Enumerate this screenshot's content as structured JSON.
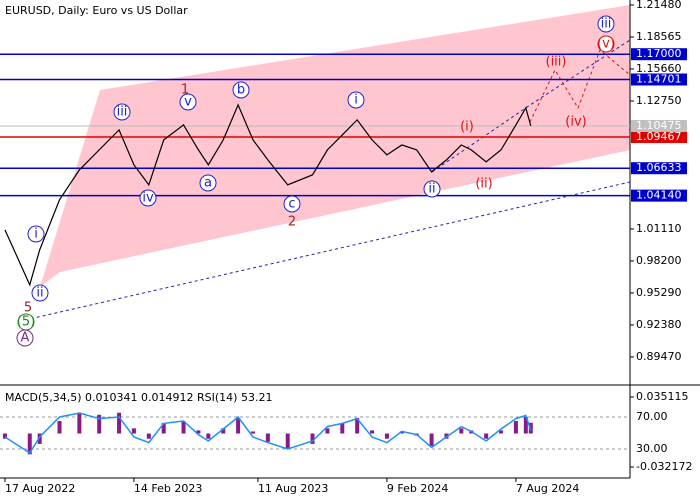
{
  "chart_data": [
    {
      "type": "line",
      "title": "EURUSD, Daily:  Euro vs US Dollar",
      "x": [
        0,
        5,
        7,
        11,
        15,
        19,
        23,
        26,
        29,
        32,
        36,
        39,
        41,
        44,
        47,
        50,
        53,
        57,
        62,
        65,
        68,
        71,
        74,
        77,
        80,
        83,
        86,
        89,
        92,
        94,
        97,
        100,
        103,
        105,
        106
      ],
      "series": [
        {
          "name": "EURUSD",
          "color": "#000000",
          "values": [
            1.0103,
            0.9603,
            0.9921,
            1.0376,
            1.0648,
            1.083,
            1.1012,
            1.0694,
            1.0512,
            1.0921,
            1.1057,
            1.083,
            1.0694,
            1.0921,
            1.1239,
            1.0921,
            1.0739,
            1.0512,
            1.0603,
            1.083,
            1.0966,
            1.1103,
            1.0921,
            1.0785,
            1.0875,
            1.083,
            1.063,
            1.0739,
            1.0875,
            1.083,
            1.0721,
            1.083,
            1.1057,
            1.1212,
            1.1048
          ]
        }
      ],
      "xlim": [
        -1,
        126
      ],
      "xticks": [
        {
          "value": 0,
          "label": "17 Aug 2022"
        },
        {
          "value": 26,
          "label": "14 Feb 2023"
        },
        {
          "value": 51,
          "label": "11 Aug 2023"
        },
        {
          "value": 77,
          "label": "9 Feb 2024"
        },
        {
          "value": 103,
          "label": "7 Aug 2024"
        }
      ],
      "ylim": [
        0.8692,
        1.2193
      ],
      "yticks": [
        {
          "value": 1.2148,
          "label": "1.21480"
        },
        {
          "value": 1.18565,
          "label": "1.18565"
        },
        {
          "value": 1.1566,
          "label": "1.15660"
        },
        {
          "value": 1.1275,
          "label": "1.12750"
        },
        {
          "value": 1.0111,
          "label": "1.01110"
        },
        {
          "value": 0.982,
          "label": "0.98200"
        },
        {
          "value": 0.9529,
          "label": "0.95290"
        },
        {
          "value": 0.9238,
          "label": "0.92380"
        },
        {
          "value": 0.8947,
          "label": "0.89470"
        }
      ],
      "last_price": {
        "value": 1.10475,
        "label": "1.10475"
      },
      "levels": [
        {
          "value": 1.17,
          "label": "1.17000",
          "color": "#0000cc"
        },
        {
          "value": 1.14701,
          "label": "1.14701",
          "color": "#0000cc"
        },
        {
          "value": 1.09467,
          "label": "1.09467",
          "color": "#e00000"
        },
        {
          "value": 1.06633,
          "label": "1.06633",
          "color": "#0000cc"
        },
        {
          "value": 1.0414,
          "label": "1.04140",
          "color": "#0000cc"
        }
      ],
      "annotations": [
        {
          "text": "iii",
          "color": "#2222cc",
          "circled": true
        },
        {
          "text": "iv",
          "color": "#2222cc",
          "circled": true
        },
        {
          "text": "v",
          "color": "#2222cc",
          "circled": true
        },
        {
          "text": "a",
          "color": "#2222cc",
          "circled": true
        },
        {
          "text": "b",
          "color": "#2222cc",
          "circled": true
        },
        {
          "text": "c",
          "color": "#2222cc",
          "circled": true
        },
        {
          "text": "i",
          "color": "#2222cc",
          "circled": true
        },
        {
          "text": "ii",
          "color": "#2222cc",
          "circled": true
        },
        {
          "text": "(i)",
          "color": "#dd1111",
          "circled": false
        },
        {
          "text": "(ii)",
          "color": "#dd1111",
          "circled": false
        },
        {
          "text": "(iii)",
          "color": "#dd1111",
          "circled": false
        },
        {
          "text": "(iv)",
          "color": "#dd1111",
          "circled": false
        },
        {
          "text": "(v)",
          "color": "#dd1111",
          "circled": true
        },
        {
          "text": "iii",
          "color": "#2222cc",
          "circled": true
        },
        {
          "text": "1",
          "color": "#a02020",
          "circled": false
        },
        {
          "text": "2",
          "color": "#a02020",
          "circled": false
        },
        {
          "text": "5",
          "color": "#a02020",
          "circled": false
        },
        {
          "text": "(5)",
          "color": "#228822",
          "circled": true
        },
        {
          "text": "A",
          "color": "#7a2a8a",
          "circled": true
        },
        {
          "text": "i",
          "color": "#2222cc",
          "circled": true
        },
        {
          "text": "ii",
          "color": "#2222cc",
          "circled": true
        }
      ]
    },
    {
      "type": "indicator",
      "title": "MACD(5,34,5) 0.010341 0.014912 RSI(14) 53.21",
      "x": [
        0,
        5,
        7,
        11,
        15,
        19,
        23,
        26,
        29,
        32,
        36,
        39,
        41,
        44,
        47,
        50,
        53,
        57,
        62,
        65,
        68,
        71,
        74,
        77,
        80,
        83,
        86,
        89,
        92,
        94,
        97,
        100,
        103,
        105,
        106
      ],
      "series": [
        {
          "name": "MACD",
          "color": "#8a1a8a",
          "values": [
            -0.005,
            -0.02,
            -0.01,
            0.012,
            0.02,
            0.018,
            0.02,
            0.005,
            -0.005,
            0.01,
            0.012,
            0.003,
            -0.005,
            0.005,
            0.015,
            0.002,
            -0.008,
            -0.015,
            -0.01,
            0.005,
            0.01,
            0.015,
            0.003,
            -0.005,
            0.002,
            -0.002,
            -0.012,
            -0.005,
            0.005,
            0.003,
            -0.005,
            0.003,
            0.012,
            0.016,
            0.010341
          ]
        },
        {
          "name": "RSI(14)",
          "color": "#1e90ff",
          "axis": "y2",
          "values": [
            45,
            25,
            45,
            70,
            75,
            68,
            70,
            45,
            38,
            62,
            65,
            48,
            40,
            55,
            70,
            45,
            38,
            30,
            40,
            58,
            62,
            68,
            45,
            38,
            52,
            48,
            32,
            45,
            58,
            52,
            40,
            55,
            68,
            72,
            53.21
          ]
        }
      ],
      "xlim": [
        -1,
        126
      ],
      "ylim": [
        -0.03698,
        0.04376
      ],
      "yticks": [
        {
          "value": 0.035115,
          "label": "0.035115"
        },
        {
          "value": -0.032172,
          "label": "-0.032172"
        }
      ],
      "y2lim": [
        1.25,
        106.25
      ],
      "y2ticks": [
        {
          "value": 70,
          "label": "70.00"
        },
        {
          "value": 30,
          "label": "30.00"
        }
      ]
    }
  ]
}
